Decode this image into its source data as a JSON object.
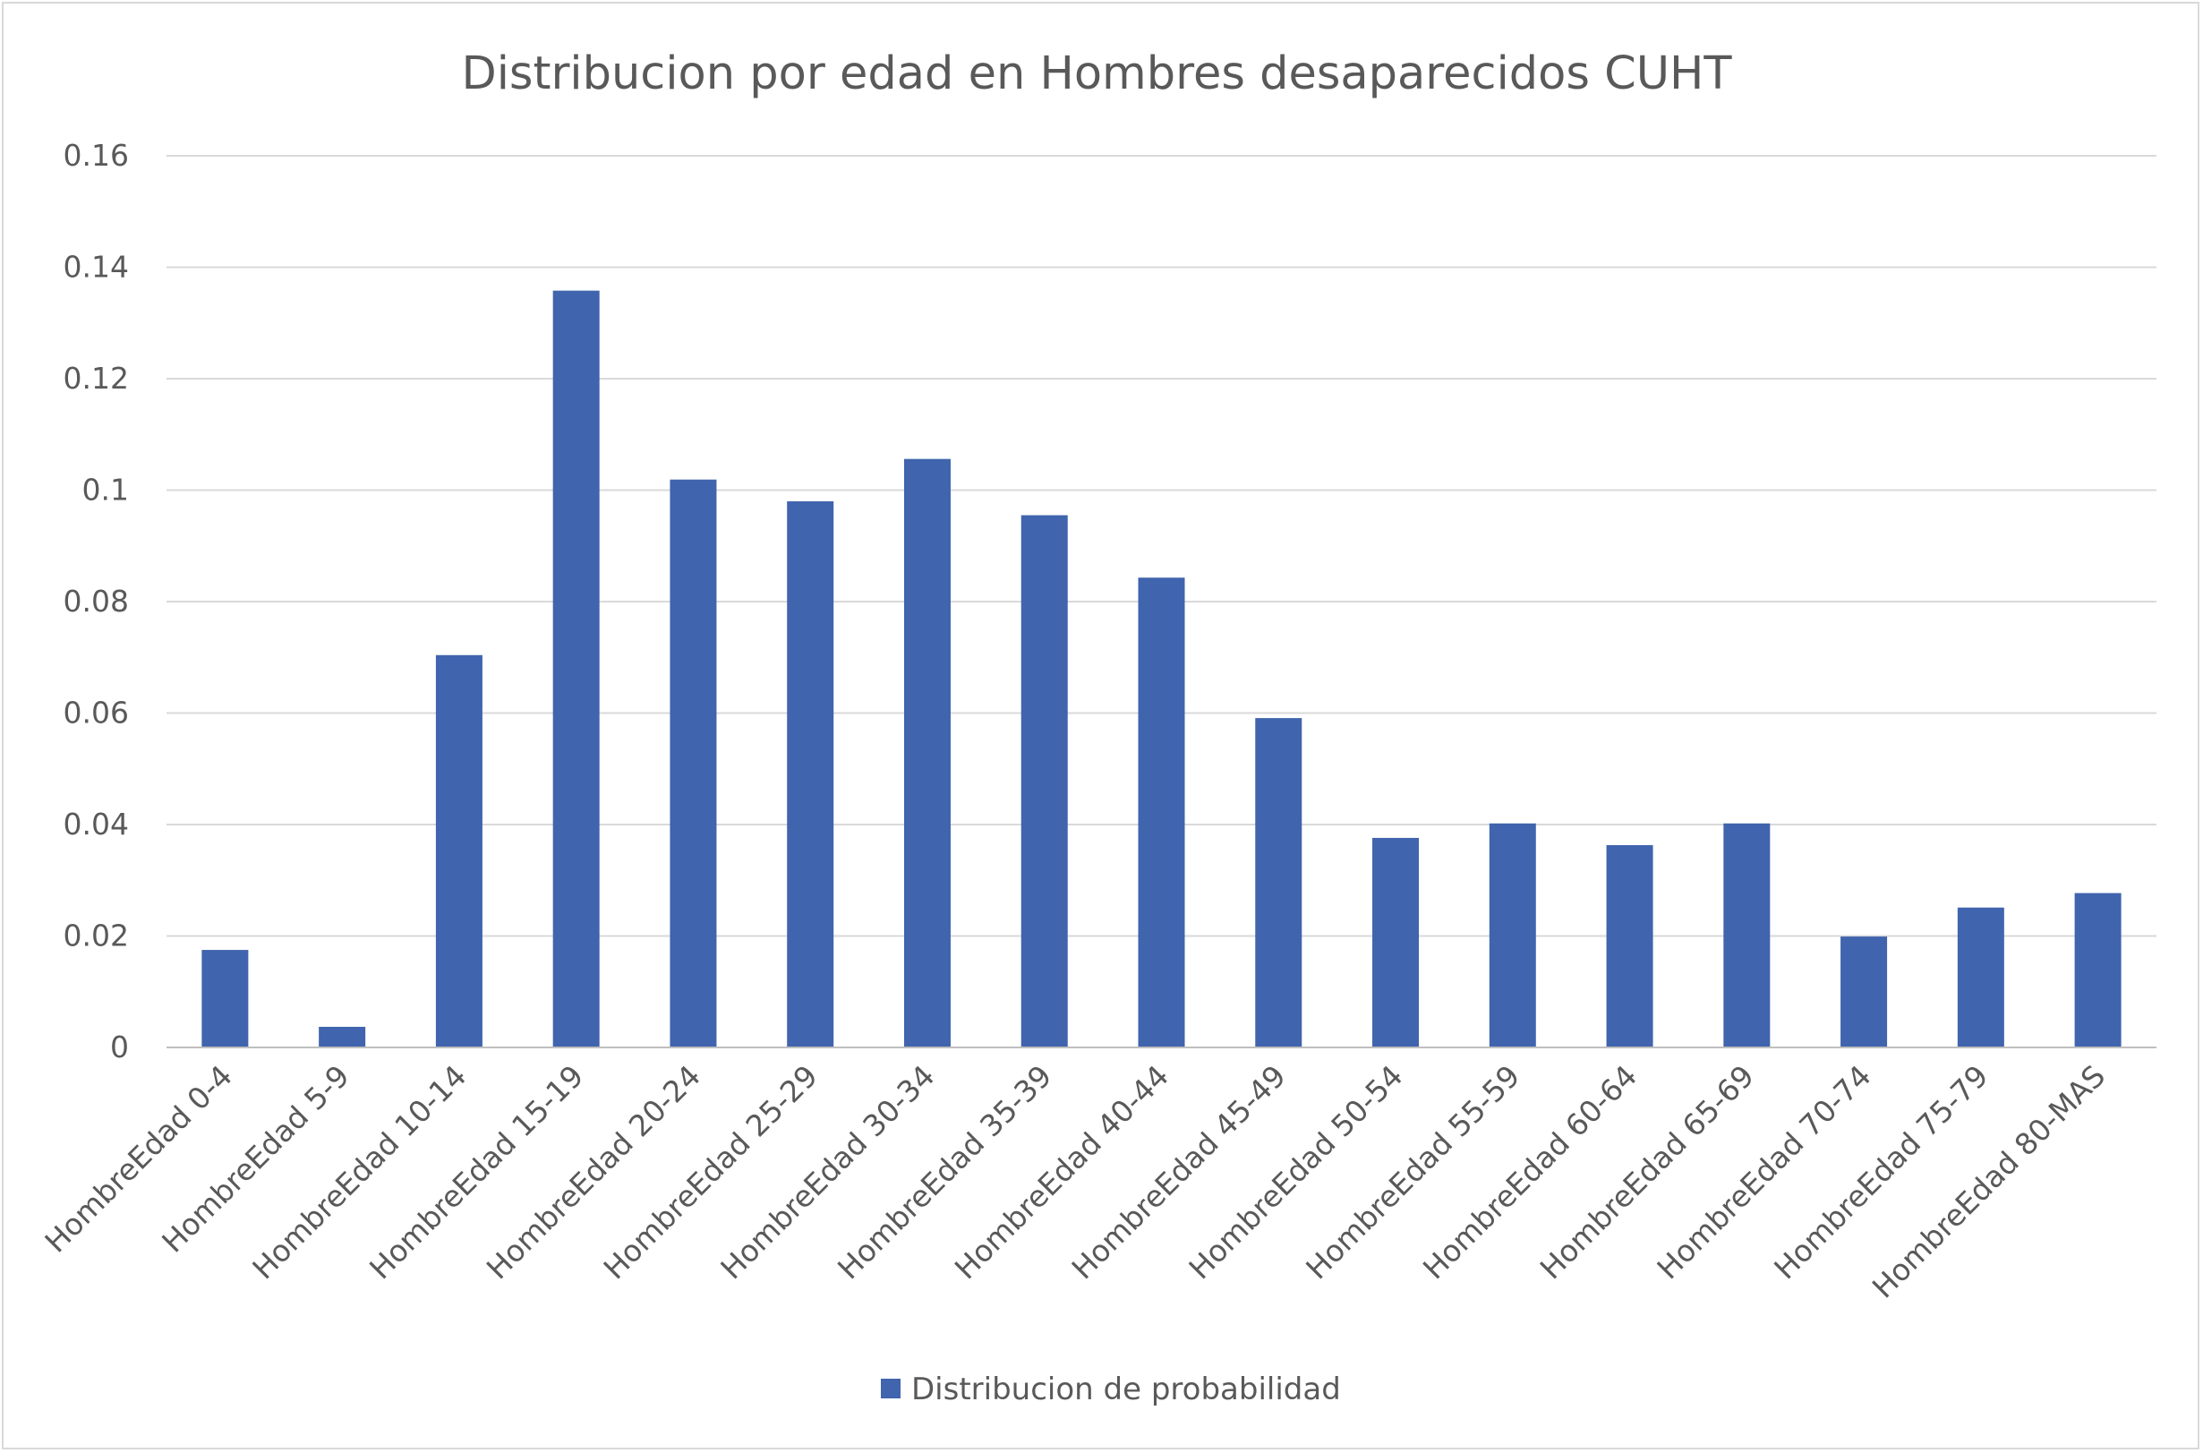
{
  "chart_data": {
    "type": "bar",
    "title": "Distribucion por edad en Hombres desaparecidos CUHT",
    "xlabel": "",
    "ylabel": "",
    "categories": [
      "HombreEdad 0-4",
      "HombreEdad 5-9",
      "HombreEdad 10-14",
      "HombreEdad 15-19",
      "HombreEdad 20-24",
      "HombreEdad 25-29",
      "HombreEdad 30-34",
      "HombreEdad 35-39",
      "HombreEdad 40-44",
      "HombreEdad 45-49",
      "HombreEdad 50-54",
      "HombreEdad 55-59",
      "HombreEdad 60-64",
      "HombreEdad 65-69",
      "HombreEdad 70-74",
      "HombreEdad 75-79",
      "HombreEdad 80-MAS"
    ],
    "series": [
      {
        "name": "Distribucion de probabilidad",
        "color": "#4064ad",
        "values": [
          0.0175,
          0.0037,
          0.0704,
          0.1358,
          0.1019,
          0.098,
          0.1056,
          0.0955,
          0.0843,
          0.0591,
          0.0376,
          0.0402,
          0.0363,
          0.0402,
          0.0199,
          0.0251,
          0.0277
        ]
      }
    ],
    "ylim": [
      0,
      0.16
    ],
    "yticks": [
      "0",
      "0.02",
      "0.04",
      "0.06",
      "0.08",
      "0.1",
      "0.12",
      "0.14",
      "0.16"
    ],
    "ytick_values": [
      0,
      0.02,
      0.04,
      0.06,
      0.08,
      0.1,
      0.12,
      0.14,
      0.16
    ],
    "grid": true,
    "legend_position": "bottom",
    "colors": {
      "bar": "#4064ad",
      "gridline": "#d9d9d9",
      "text": "#595959",
      "axis": "#bfbfbf"
    }
  }
}
